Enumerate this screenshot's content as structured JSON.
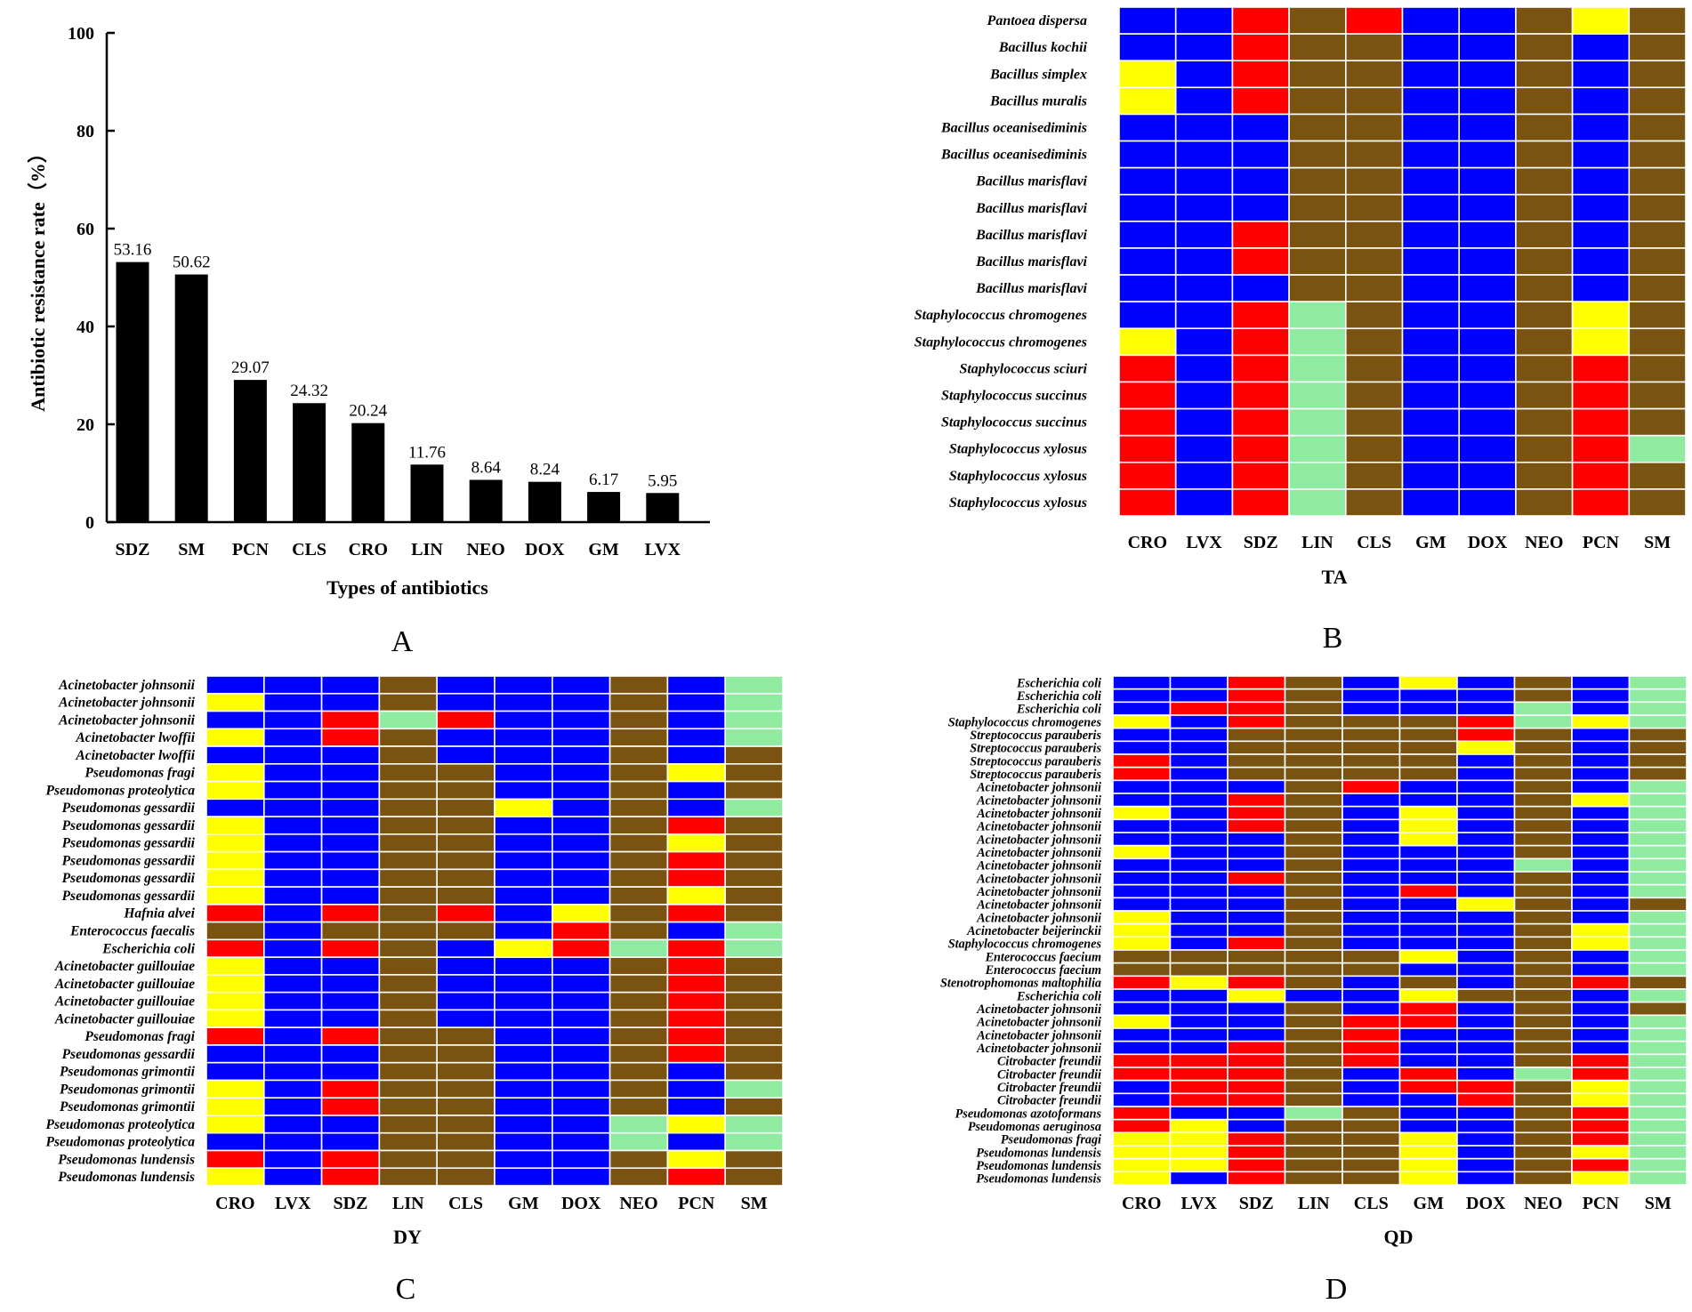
{
  "colors": {
    "S": "#0000ff",
    "I": "#ffff00",
    "R": "#ff0000",
    "B": "#7a5310",
    "G": "#8eeba0"
  },
  "chart_data": [
    {
      "type": "bar",
      "panel": "A",
      "categories": [
        "SDZ",
        "SM",
        "PCN",
        "CLS",
        "CRO",
        "LIN",
        "NEO",
        "DOX",
        "GM",
        "LVX"
      ],
      "values": [
        53.16,
        50.62,
        29.07,
        24.32,
        20.24,
        11.76,
        8.64,
        8.24,
        6.17,
        5.95
      ],
      "labels": [
        "53.16",
        "50.62",
        "29.07",
        "24.32",
        "20.24",
        "11.76",
        "8.64",
        "8.24",
        "6.17",
        "5.95"
      ],
      "yticks": [
        "0",
        "20",
        "40",
        "60",
        "80",
        "100"
      ],
      "ylim": [
        0,
        100
      ],
      "xlabel": "Types of antibiotics",
      "ylabel": "Antibiotic resistance rate（%）"
    },
    {
      "type": "heatmap",
      "panel": "B",
      "group": "TA",
      "columns": [
        "CRO",
        "LVX",
        "SDZ",
        "LIN",
        "CLS",
        "GM",
        "DOX",
        "NEO",
        "PCN",
        "SM"
      ],
      "rows": [
        {
          "name": "Pantoea dispersa",
          "cells": "SSRBRSSBIB"
        },
        {
          "name": "Bacillus kochii",
          "cells": "SSRBBSSBSB"
        },
        {
          "name": "Bacillus simplex",
          "cells": "ISRBBSSBSB"
        },
        {
          "name": "Bacillus muralis",
          "cells": "ISRBBSSBSB"
        },
        {
          "name": "Bacillus oceanisediminis",
          "cells": "SSSBBSSBSB"
        },
        {
          "name": "Bacillus oceanisediminis",
          "cells": "SSSBBSSBSB"
        },
        {
          "name": "Bacillus marisflavi",
          "cells": "SSSBBSSBSB"
        },
        {
          "name": "Bacillus marisflavi",
          "cells": "SSSBBSSBSB"
        },
        {
          "name": "Bacillus marisflavi",
          "cells": "SSRBBSSBSB"
        },
        {
          "name": "Bacillus marisflavi",
          "cells": "SSRBBSSBSB"
        },
        {
          "name": "Bacillus marisflavi",
          "cells": "SSSBBSSBSB"
        },
        {
          "name": "Staphylococcus chromogenes",
          "cells": "SSRGBSSBIB"
        },
        {
          "name": "Staphylococcus chromogenes",
          "cells": "ISRGBSSBIB"
        },
        {
          "name": "Staphylococcus sciuri",
          "cells": "RSRGBSSBRB"
        },
        {
          "name": "Staphylococcus succinus",
          "cells": "RSRGBSSBRB"
        },
        {
          "name": "Staphylococcus succinus",
          "cells": "RSRGBSSBRB"
        },
        {
          "name": "Staphylococcus xylosus",
          "cells": "RSRGBSSBRG"
        },
        {
          "name": "Staphylococcus xylosus",
          "cells": "RSRGBSSBRB"
        },
        {
          "name": "Staphylococcus xylosus",
          "cells": "RSRGBSSBRB"
        }
      ]
    },
    {
      "type": "heatmap",
      "panel": "C",
      "group": "DY",
      "columns": [
        "CRO",
        "LVX",
        "SDZ",
        "LIN",
        "CLS",
        "GM",
        "DOX",
        "NEO",
        "PCN",
        "SM"
      ],
      "rows": [
        {
          "name": "Acinetobacter johnsonii",
          "cells": "SSSBSSSBSG"
        },
        {
          "name": "Acinetobacter johnsonii",
          "cells": "ISSBSSSBSG"
        },
        {
          "name": "Acinetobacter johnsonii",
          "cells": "SSRGRSSBSG"
        },
        {
          "name": "Acinetobacter lwoffii",
          "cells": "ISRBSSSBSG"
        },
        {
          "name": "Acinetobacter lwoffii",
          "cells": "SSSBSSSBSB"
        },
        {
          "name": "Pseudomonas fragi",
          "cells": "ISSBBSSBIB"
        },
        {
          "name": "Pseudomonas proteolytica",
          "cells": "ISSBBSSBSB"
        },
        {
          "name": "Pseudomonas gessardii",
          "cells": "SSSBBISBSG"
        },
        {
          "name": "Pseudomonas gessardii",
          "cells": "ISSBBSSBRB"
        },
        {
          "name": "Pseudomonas gessardii",
          "cells": "ISSBBSSBIB"
        },
        {
          "name": "Pseudomonas gessardii",
          "cells": "ISSBBSSBRB"
        },
        {
          "name": "Pseudomonas gessardii",
          "cells": "ISSBBSSBRB"
        },
        {
          "name": "Pseudomonas gessardii",
          "cells": "ISSBBSSBIB"
        },
        {
          "name": "Hafnia alvei",
          "cells": "RSRBRSIBRB"
        },
        {
          "name": "Enterococcus faecalis",
          "cells": "BSBBBSRBSG"
        },
        {
          "name": "Escherichia coli",
          "cells": "RSRBSIRGRG"
        },
        {
          "name": "Acinetobacter guillouiae",
          "cells": "ISSBSSSBRB"
        },
        {
          "name": "Acinetobacter guillouiae",
          "cells": "ISSBSSSBRB"
        },
        {
          "name": "Acinetobacter guillouiae",
          "cells": "ISSBSSSBRB"
        },
        {
          "name": "Acinetobacter guillouiae",
          "cells": "ISSBSSSBRB"
        },
        {
          "name": "Pseudomonas fragi",
          "cells": "RSRBBSSBRB"
        },
        {
          "name": "Pseudomonas gessardii",
          "cells": "SSSBBSSBRB"
        },
        {
          "name": "Pseudomonas grimontii",
          "cells": "SSSBBSSBSB"
        },
        {
          "name": "Pseudomonas grimontii",
          "cells": "ISRBBSSBSG"
        },
        {
          "name": "Pseudomonas grimontii",
          "cells": "ISRBBSSBSB"
        },
        {
          "name": "Pseudomonas proteolytica",
          "cells": "ISSBBSSGIG"
        },
        {
          "name": "Pseudomonas proteolytica",
          "cells": "SSSBBSSGSG"
        },
        {
          "name": "Pseudomonas lundensis",
          "cells": "RSRBBSSBIB"
        },
        {
          "name": "Pseudomonas lundensis",
          "cells": "ISRBBSSBRB"
        }
      ]
    },
    {
      "type": "heatmap",
      "panel": "D",
      "group": "QD",
      "columns": [
        "CRO",
        "LVX",
        "SDZ",
        "LIN",
        "CLS",
        "GM",
        "DOX",
        "NEO",
        "PCN",
        "SM"
      ],
      "rows": [
        {
          "name": "Escherichia coli",
          "cells": "SSRBSISBSG"
        },
        {
          "name": "Escherichia coli",
          "cells": "SSRBSSSBSG"
        },
        {
          "name": "Escherichia coli",
          "cells": "SRRBSSSGSG"
        },
        {
          "name": "Staphylococcus chromogenes",
          "cells": "ISRBBBRGIG"
        },
        {
          "name": "Streptococcus parauberis",
          "cells": "SSBBBBRBSB"
        },
        {
          "name": "Streptococcus parauberis",
          "cells": "SSBBBBIBSB"
        },
        {
          "name": "Streptococcus parauberis",
          "cells": "RSBBBBSBSB"
        },
        {
          "name": "Streptococcus parauberis",
          "cells": "RSBBBBSBSB"
        },
        {
          "name": "Acinetobacter johnsonii",
          "cells": "SSSBRSSBSG"
        },
        {
          "name": "Acinetobacter johnsonii",
          "cells": "SSRBSSSBIG"
        },
        {
          "name": "Acinetobacter johnsonii",
          "cells": "ISRBSISBSG"
        },
        {
          "name": "Acinetobacter johnsonii",
          "cells": "SSRBSISBSG"
        },
        {
          "name": "Acinetobacter johnsonii",
          "cells": "SSSBSISBSG"
        },
        {
          "name": "Acinetobacter johnsonii",
          "cells": "ISSBSSSBSG"
        },
        {
          "name": "Acinetobacter johnsonii",
          "cells": "SSSBSSSGSG"
        },
        {
          "name": "Acinetobacter johnsonii",
          "cells": "SSRBSSSBSG"
        },
        {
          "name": "Acinetobacter johnsonii",
          "cells": "SSSBSRSBSG"
        },
        {
          "name": "Acinetobacter johnsonii",
          "cells": "SSSBSSIBSB"
        },
        {
          "name": "Acinetobacter johnsonii",
          "cells": "ISSBSSSBSG"
        },
        {
          "name": "Acinetobacter beijerinckii",
          "cells": "ISSBSSSBIG"
        },
        {
          "name": "Staphylococcus chromogenes",
          "cells": "ISRBSSSBIG"
        },
        {
          "name": "Enterococcus faecium",
          "cells": "BBBBBISBSG"
        },
        {
          "name": "Enterococcus faecium",
          "cells": "BBBBBSSBSG"
        },
        {
          "name": "Stenotrophomonas maltophilia",
          "cells": "RIRBSBSBRB"
        },
        {
          "name": "Escherichia coli",
          "cells": "SSISSIBBSG"
        },
        {
          "name": "Acinetobacter johnsonii",
          "cells": "SSSBSRSBSB"
        },
        {
          "name": "Acinetobacter johnsonii",
          "cells": "ISSBRRSBSG"
        },
        {
          "name": "Acinetobacter johnsonii",
          "cells": "SSSBRSSBSG"
        },
        {
          "name": "Acinetobacter johnsonii",
          "cells": "SSRBRSSBSG"
        },
        {
          "name": "Citrobacter freundii",
          "cells": "RRRBRSSBRG"
        },
        {
          "name": "Citrobacter freundii",
          "cells": "RRRBSRSGRG"
        },
        {
          "name": "Citrobacter freundii",
          "cells": "SRRBSRRBIG"
        },
        {
          "name": "Citrobacter freundii",
          "cells": "SRRBSSRBIG"
        },
        {
          "name": "Pseudomonas azotoformans",
          "cells": "RSSGBSSBRG"
        },
        {
          "name": "Pseudomonas aeruginosa",
          "cells": "RISBBSSBRG"
        },
        {
          "name": "Pseudomonas fragi",
          "cells": "IIRBBISBRG"
        },
        {
          "name": "Pseudomonas lundensis",
          "cells": "IIRBBISBIG"
        },
        {
          "name": "Pseudomonas lundensis",
          "cells": "IIRBBISBRG"
        },
        {
          "name": "Pseudomonas lundensis",
          "cells": "ISRBBISBIG"
        }
      ]
    }
  ]
}
